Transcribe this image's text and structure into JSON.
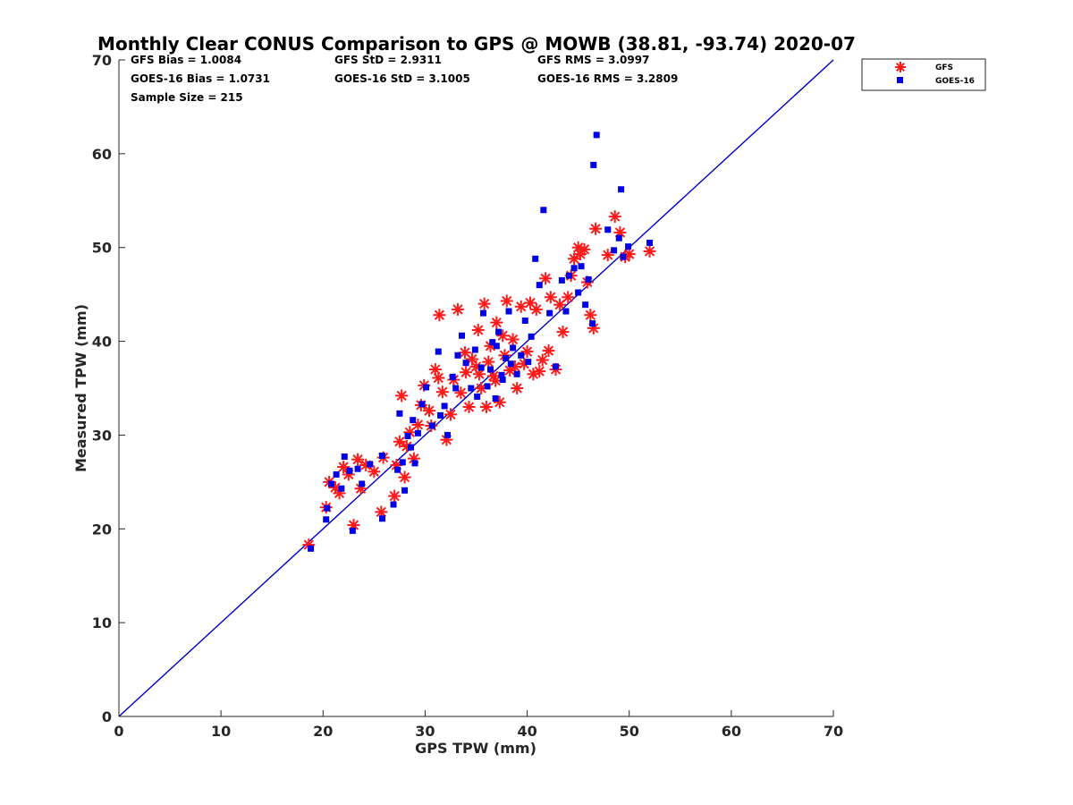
{
  "chart_data": {
    "type": "scatter",
    "title": "Monthly Clear CONUS Comparison to GPS @ MOWB (38.81, -93.74) 2020-07",
    "xlabel": "GPS TPW (mm)",
    "ylabel": "Measured TPW (mm)",
    "xlim": [
      0,
      70
    ],
    "ylim": [
      0,
      70
    ],
    "xticks": [
      "0",
      "10",
      "20",
      "30",
      "40",
      "50",
      "60",
      "70"
    ],
    "yticks": [
      "0",
      "10",
      "20",
      "30",
      "40",
      "50",
      "60",
      "70"
    ],
    "grid": false,
    "legend_placement": "outside-top-right",
    "stats": {
      "gfs_bias": "GFS Bias = 1.0084",
      "goes_bias": "GOES-16 Bias = 1.0731",
      "sample_size": "Sample Size = 215",
      "gfs_std": "GFS StD = 2.9311",
      "goes_std": "GOES-16 StD = 3.1005",
      "gfs_rms": "GFS RMS = 3.0997",
      "goes_rms": "GOES-16 RMS = 3.2809"
    },
    "reference_line": {
      "x": [
        0,
        70
      ],
      "y": [
        0,
        70
      ],
      "color": "#0000cc"
    },
    "series": [
      {
        "name": "GFS",
        "marker": "asterisk",
        "color": "#ff1a1a",
        "points": [
          [
            18.6,
            18.3
          ],
          [
            20.3,
            22.3
          ],
          [
            20.6,
            25.0
          ],
          [
            21.2,
            24.4
          ],
          [
            21.6,
            23.8
          ],
          [
            22.0,
            26.6
          ],
          [
            22.5,
            25.8
          ],
          [
            23.0,
            20.4
          ],
          [
            23.4,
            27.4
          ],
          [
            23.7,
            24.3
          ],
          [
            24.2,
            26.8
          ],
          [
            25.0,
            26.1
          ],
          [
            25.7,
            21.8
          ],
          [
            25.9,
            27.6
          ],
          [
            27.0,
            23.5
          ],
          [
            27.2,
            26.8
          ],
          [
            27.5,
            29.3
          ],
          [
            27.7,
            34.2
          ],
          [
            28.0,
            25.5
          ],
          [
            28.2,
            28.8
          ],
          [
            28.5,
            30.3
          ],
          [
            28.9,
            27.5
          ],
          [
            29.3,
            31.1
          ],
          [
            29.6,
            33.2
          ],
          [
            29.9,
            35.3
          ],
          [
            30.4,
            32.6
          ],
          [
            30.6,
            31.0
          ],
          [
            31.0,
            37.0
          ],
          [
            31.3,
            36.1
          ],
          [
            31.4,
            42.8
          ],
          [
            31.7,
            34.6
          ],
          [
            32.1,
            29.5
          ],
          [
            32.5,
            32.2
          ],
          [
            32.8,
            35.9
          ],
          [
            33.2,
            43.4
          ],
          [
            33.5,
            34.5
          ],
          [
            34.0,
            36.7
          ],
          [
            34.3,
            33.0
          ],
          [
            34.6,
            38.1
          ],
          [
            35.0,
            37.3
          ],
          [
            35.2,
            41.2
          ],
          [
            35.5,
            35.0
          ],
          [
            35.8,
            44.0
          ],
          [
            36.0,
            33.0
          ],
          [
            36.4,
            39.5
          ],
          [
            36.7,
            36.3
          ],
          [
            37.0,
            42.0
          ],
          [
            37.3,
            33.5
          ],
          [
            37.6,
            40.6
          ],
          [
            38.0,
            44.3
          ],
          [
            38.3,
            36.9
          ],
          [
            38.6,
            40.2
          ],
          [
            39.0,
            35.0
          ],
          [
            39.4,
            43.7
          ],
          [
            39.7,
            37.6
          ],
          [
            40.0,
            38.9
          ],
          [
            40.3,
            44.1
          ],
          [
            40.6,
            36.5
          ],
          [
            40.9,
            43.4
          ],
          [
            41.2,
            36.8
          ],
          [
            41.5,
            38.0
          ],
          [
            41.8,
            46.7
          ],
          [
            42.1,
            39.0
          ],
          [
            42.3,
            44.7
          ],
          [
            42.8,
            37.0
          ],
          [
            43.2,
            43.9
          ],
          [
            43.5,
            41.0
          ],
          [
            44.0,
            44.7
          ],
          [
            44.3,
            47.0
          ],
          [
            44.6,
            48.8
          ],
          [
            45.0,
            50.0
          ],
          [
            45.2,
            49.3
          ],
          [
            45.6,
            49.8
          ],
          [
            45.9,
            46.3
          ],
          [
            46.2,
            42.8
          ],
          [
            46.5,
            41.4
          ],
          [
            46.7,
            52.0
          ],
          [
            47.9,
            49.2
          ],
          [
            48.6,
            53.3
          ],
          [
            49.1,
            51.6
          ],
          [
            49.6,
            49.0
          ],
          [
            50.0,
            49.3
          ],
          [
            52.0,
            49.6
          ],
          [
            36.2,
            37.8
          ],
          [
            37.8,
            38.5
          ],
          [
            35.3,
            36.5
          ],
          [
            33.9,
            38.8
          ],
          [
            38.8,
            37.3
          ],
          [
            36.9,
            35.8
          ]
        ]
      },
      {
        "name": "GOES-16",
        "marker": "square",
        "color": "#0000e6",
        "points": [
          [
            18.8,
            17.9
          ],
          [
            20.3,
            21.0
          ],
          [
            20.4,
            22.2
          ],
          [
            20.8,
            24.8
          ],
          [
            21.3,
            25.8
          ],
          [
            21.8,
            24.3
          ],
          [
            22.1,
            27.7
          ],
          [
            22.6,
            26.2
          ],
          [
            22.9,
            19.8
          ],
          [
            23.4,
            26.4
          ],
          [
            23.8,
            24.8
          ],
          [
            24.6,
            26.9
          ],
          [
            25.8,
            21.1
          ],
          [
            25.8,
            27.8
          ],
          [
            26.9,
            22.6
          ],
          [
            27.3,
            26.3
          ],
          [
            27.5,
            32.3
          ],
          [
            27.8,
            27.1
          ],
          [
            28.0,
            24.1
          ],
          [
            28.3,
            29.9
          ],
          [
            28.6,
            28.7
          ],
          [
            28.8,
            31.6
          ],
          [
            29.0,
            27.0
          ],
          [
            29.3,
            30.2
          ],
          [
            29.7,
            33.3
          ],
          [
            30.1,
            35.1
          ],
          [
            30.7,
            31.0
          ],
          [
            31.3,
            38.9
          ],
          [
            31.5,
            32.1
          ],
          [
            31.9,
            33.1
          ],
          [
            32.2,
            30.0
          ],
          [
            32.7,
            36.2
          ],
          [
            33.2,
            38.5
          ],
          [
            33.6,
            40.6
          ],
          [
            34.0,
            37.7
          ],
          [
            34.5,
            35.0
          ],
          [
            34.9,
            39.1
          ],
          [
            35.5,
            37.2
          ],
          [
            35.7,
            43.0
          ],
          [
            36.1,
            35.2
          ],
          [
            36.6,
            39.9
          ],
          [
            36.9,
            33.9
          ],
          [
            37.2,
            41.0
          ],
          [
            37.6,
            35.9
          ],
          [
            37.9,
            38.2
          ],
          [
            38.2,
            43.2
          ],
          [
            38.6,
            39.3
          ],
          [
            39.0,
            36.5
          ],
          [
            39.4,
            38.5
          ],
          [
            39.8,
            42.2
          ],
          [
            40.1,
            37.8
          ],
          [
            40.4,
            40.5
          ],
          [
            40.8,
            48.8
          ],
          [
            41.2,
            46.0
          ],
          [
            41.6,
            54.0
          ],
          [
            42.2,
            43.0
          ],
          [
            42.8,
            37.3
          ],
          [
            43.4,
            46.5
          ],
          [
            43.8,
            43.2
          ],
          [
            44.1,
            47.0
          ],
          [
            44.6,
            47.8
          ],
          [
            45.0,
            45.2
          ],
          [
            45.3,
            48.0
          ],
          [
            45.7,
            43.9
          ],
          [
            46.0,
            46.6
          ],
          [
            46.4,
            41.9
          ],
          [
            46.5,
            58.8
          ],
          [
            46.8,
            62.0
          ],
          [
            47.9,
            51.9
          ],
          [
            48.5,
            49.7
          ],
          [
            49.0,
            51.0
          ],
          [
            49.2,
            56.2
          ],
          [
            49.4,
            49.0
          ],
          [
            49.9,
            50.1
          ],
          [
            52.0,
            50.5
          ],
          [
            36.4,
            37.0
          ],
          [
            37.5,
            36.4
          ],
          [
            35.1,
            34.1
          ],
          [
            38.4,
            37.6
          ],
          [
            33.0,
            35.0
          ],
          [
            37.0,
            39.5
          ]
        ]
      }
    ]
  }
}
